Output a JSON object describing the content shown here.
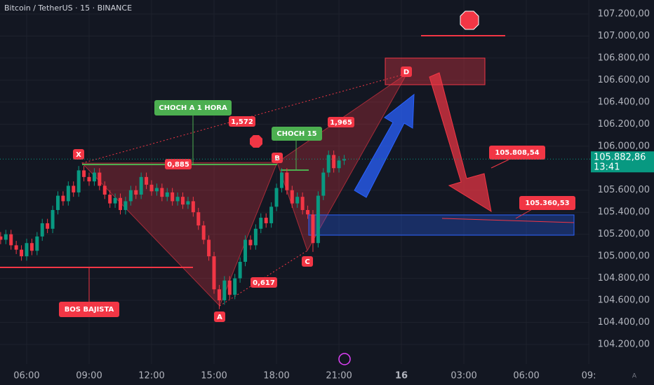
{
  "header": {
    "title": "Bitcoin / TetherUS · 15 · BINANCE"
  },
  "chart_data": {
    "type": "candlestick",
    "x": [
      4.75,
      5,
      5.25,
      5.5,
      5.75,
      6,
      6.25,
      6.5,
      6.75,
      7,
      7.25,
      7.5,
      7.75,
      8,
      8.25,
      8.5,
      8.75,
      9,
      9.25,
      9.5,
      9.75,
      10,
      10.25,
      10.5,
      10.75,
      11,
      11.25,
      11.5,
      11.75,
      12,
      12.25,
      12.5,
      12.75,
      13,
      13.25,
      13.5,
      13.75,
      14,
      14.25,
      14.5,
      14.75,
      15,
      15.25,
      15.5,
      15.75,
      16,
      16.25,
      16.5,
      16.75,
      17,
      17.25,
      17.5,
      17.75,
      18,
      18.25,
      18.5,
      18.75,
      19,
      19.25,
      19.5,
      19.75,
      20,
      20.25,
      20.5,
      20.75,
      21,
      21.25
    ],
    "open": [
      105180,
      105150,
      105200,
      105100,
      105060,
      105000,
      105120,
      105050,
      105180,
      105300,
      105250,
      105420,
      105550,
      105500,
      105640,
      105580,
      105780,
      105720,
      105680,
      105760,
      105640,
      105560,
      105480,
      105530,
      105420,
      105500,
      105600,
      105560,
      105720,
      105650,
      105590,
      105620,
      105540,
      105580,
      105500,
      105540,
      105470,
      105500,
      105400,
      105280,
      105150,
      105000,
      104700,
      104600,
      104780,
      104650,
      104800,
      104950,
      105150,
      105100,
      105250,
      105350,
      105300,
      105450,
      105620,
      105760,
      105600,
      105480,
      105540,
      105420,
      105380,
      105120,
      105550,
      105760,
      105920,
      105800,
      105870
    ],
    "high": [
      105220,
      105240,
      105240,
      105140,
      105100,
      105160,
      105160,
      105220,
      105340,
      105340,
      105460,
      105590,
      105590,
      105680,
      105680,
      105820,
      105820,
      105760,
      105800,
      105800,
      105680,
      105600,
      105570,
      105570,
      105540,
      105640,
      105640,
      105760,
      105760,
      105690,
      105660,
      105660,
      105620,
      105620,
      105580,
      105580,
      105540,
      105540,
      105440,
      105320,
      105190,
      105040,
      104740,
      104820,
      104820,
      104840,
      104990,
      105190,
      105190,
      105290,
      105390,
      105390,
      105490,
      105660,
      105800,
      105800,
      105640,
      105580,
      105580,
      105460,
      105420,
      105590,
      105800,
      105960,
      105960,
      105910,
      105920
    ],
    "low": [
      105110,
      105110,
      105060,
      105020,
      104960,
      104960,
      105010,
      105010,
      105140,
      105210,
      105210,
      105380,
      105460,
      105460,
      105540,
      105540,
      105680,
      105640,
      105640,
      105600,
      105520,
      105440,
      105440,
      105380,
      105380,
      105460,
      105520,
      105520,
      105610,
      105550,
      105550,
      105500,
      105500,
      105460,
      105460,
      105430,
      105430,
      105360,
      105240,
      105110,
      104960,
      104660,
      104520,
      104560,
      104610,
      104610,
      104760,
      104910,
      105060,
      105060,
      105210,
      105260,
      105260,
      105410,
      105580,
      105560,
      105440,
      105440,
      105380,
      105340,
      105040,
      105080,
      105510,
      105720,
      105760,
      105760,
      105830
    ],
    "close": [
      105150,
      105200,
      105100,
      105060,
      105000,
      105120,
      105050,
      105180,
      105300,
      105250,
      105420,
      105550,
      105500,
      105640,
      105580,
      105780,
      105720,
      105680,
      105760,
      105640,
      105560,
      105480,
      105530,
      105420,
      105500,
      105600,
      105560,
      105720,
      105650,
      105590,
      105620,
      105540,
      105580,
      105500,
      105540,
      105470,
      105500,
      105400,
      105280,
      105150,
      105000,
      104700,
      104600,
      104780,
      104650,
      104800,
      104950,
      105150,
      105100,
      105250,
      105350,
      105300,
      105450,
      105620,
      105760,
      105600,
      105480,
      105540,
      105420,
      105380,
      105120,
      105550,
      105760,
      105920,
      105800,
      105870,
      105880
    ],
    "up_color": "#089981",
    "down_color": "#f23645",
    "xlim": [
      4.72,
      33.03
    ],
    "xticks": [
      {
        "value": 6,
        "label": "06:00"
      },
      {
        "value": 9,
        "label": "09:00"
      },
      {
        "value": 12,
        "label": "12:00"
      },
      {
        "value": 15,
        "label": "15:00"
      },
      {
        "value": 18,
        "label": "18:00"
      },
      {
        "value": 21,
        "label": "21:00"
      },
      {
        "value": 24,
        "label": "16"
      },
      {
        "value": 27,
        "label": "03:00"
      },
      {
        "value": 30,
        "label": "06:00"
      },
      {
        "value": 33,
        "label": "09:"
      }
    ],
    "ylim": [
      104022,
      107327
    ],
    "yticks": [
      {
        "value": 107200,
        "label": "107.200,00"
      },
      {
        "value": 107000,
        "label": "107.000,00"
      },
      {
        "value": 106800,
        "label": "106.800,00"
      },
      {
        "value": 106600,
        "label": "106.600,00"
      },
      {
        "value": 106400,
        "label": "106.400,00"
      },
      {
        "value": 106200,
        "label": "106.200,00"
      },
      {
        "value": 106000,
        "label": "106.000,00"
      },
      {
        "value": 105600,
        "label": "105.600,00"
      },
      {
        "value": 105400,
        "label": "105.400,00"
      },
      {
        "value": 105200,
        "label": "105.200,00"
      },
      {
        "value": 105000,
        "label": "105.000,00"
      },
      {
        "value": 104800,
        "label": "104.800,00"
      },
      {
        "value": 104600,
        "label": "104.600,00"
      },
      {
        "value": 104400,
        "label": "104.400,00"
      },
      {
        "value": 104200,
        "label": "104.200,00"
      }
    ],
    "grid": true,
    "last_price": {
      "value": 105882.86,
      "label": "105.882,86"
    },
    "countdown": "13:41",
    "annotations": {
      "points": [
        "X",
        "A",
        "B",
        "C",
        "D"
      ],
      "ratios": [
        "0,885",
        "1,572",
        "1,965",
        "0,617"
      ],
      "structure": [
        "CHOCH A 1 HORA",
        "CHOCH 15",
        "BOS BAJISTA"
      ],
      "targets": [
        "105.808,54",
        "105.360,53"
      ]
    }
  }
}
